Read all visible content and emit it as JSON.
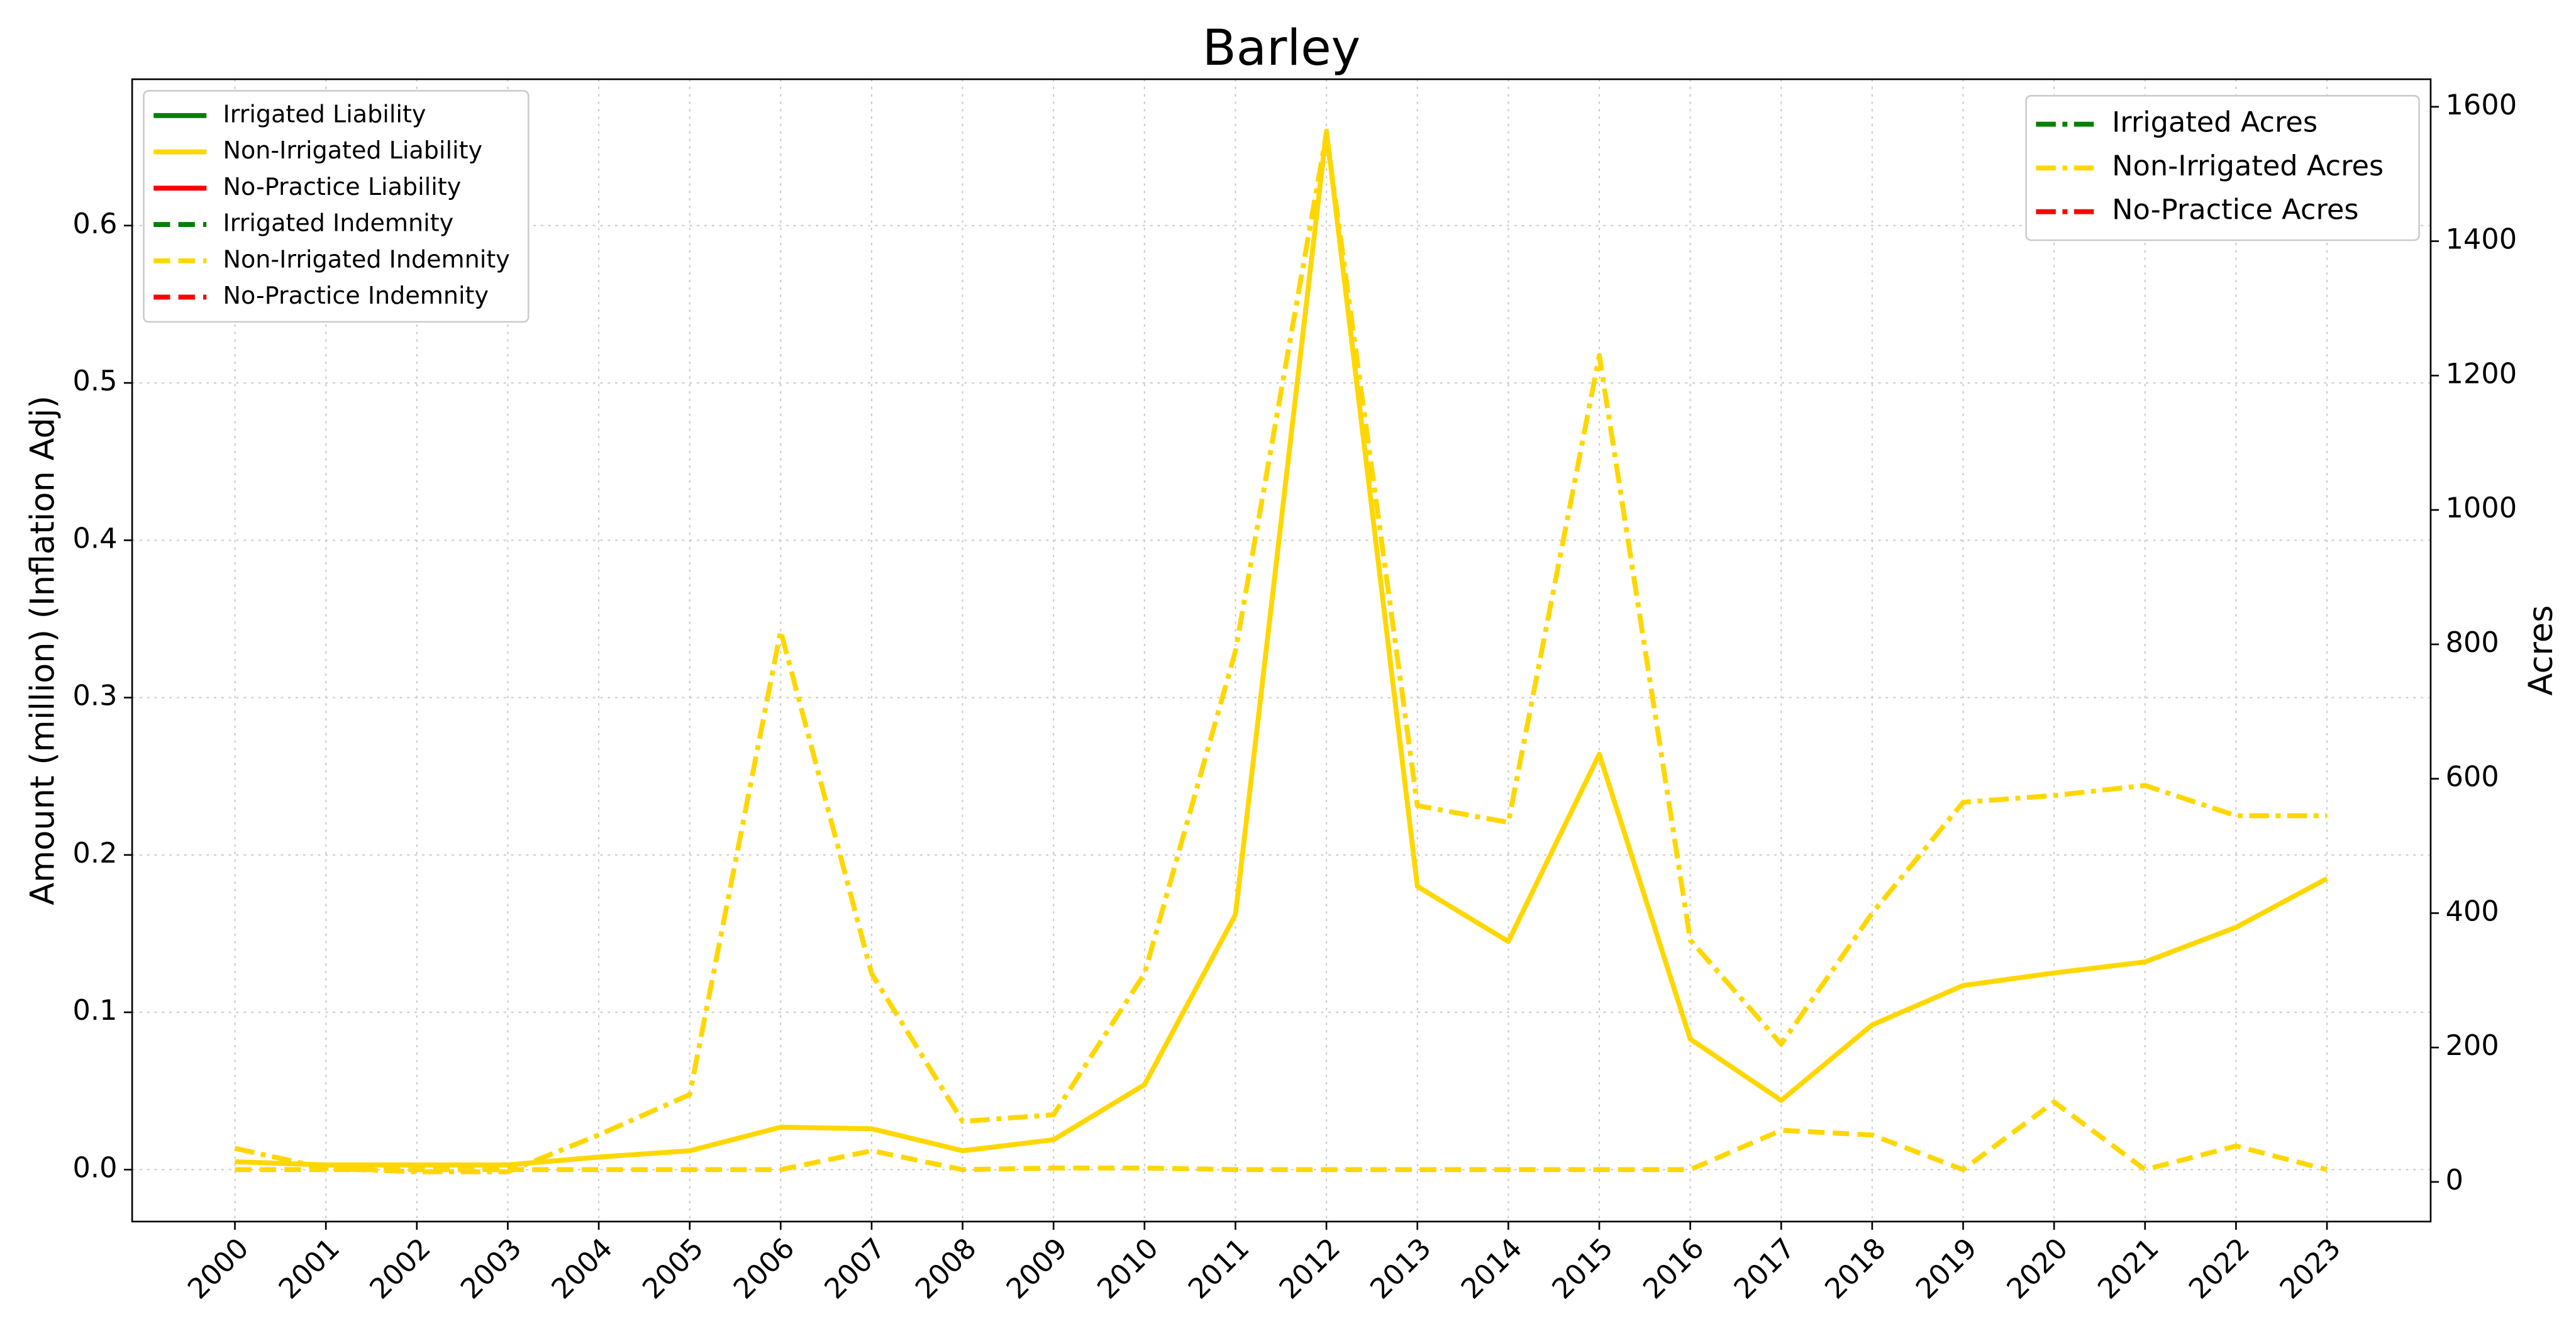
{
  "chart_data": {
    "type": "line",
    "title": "Barley",
    "ylabel": "Amount (million) (Inflation Adj)",
    "y2label": "Acres",
    "x": [
      2000,
      2001,
      2002,
      2003,
      2004,
      2005,
      2006,
      2007,
      2008,
      2009,
      2010,
      2011,
      2012,
      2013,
      2014,
      2015,
      2016,
      2017,
      2018,
      2019,
      2020,
      2021,
      2022,
      2023
    ],
    "xlim": [
      1998.87,
      2024.14
    ],
    "xticks": [
      2000,
      2001,
      2002,
      2003,
      2004,
      2005,
      2006,
      2007,
      2008,
      2009,
      2010,
      2011,
      2012,
      2013,
      2014,
      2015,
      2016,
      2017,
      2018,
      2019,
      2020,
      2021,
      2022,
      2023
    ],
    "ylim": [
      -0.033,
      0.693
    ],
    "yticks": [
      {
        "value": 0,
        "label": "0.0"
      },
      0.1,
      0.2,
      0.3,
      0.4,
      0.5,
      0.6
    ],
    "y2lim": [
      -59,
      1641
    ],
    "y2ticks": [
      0,
      200,
      400,
      600,
      800,
      1000,
      1200,
      1400,
      1600
    ],
    "grid": true,
    "legend": "upper left",
    "legend2": "upper right",
    "series": [
      {
        "name": "Irrigated Liability",
        "color": "#008000",
        "linestyle": "solid",
        "values": [
          null,
          null,
          null,
          null,
          null,
          null,
          null,
          null,
          null,
          null,
          null,
          null,
          null,
          null,
          null,
          null,
          null,
          null,
          null,
          null,
          null,
          null,
          null,
          null
        ]
      },
      {
        "name": "Non-Irrigated Liability",
        "color": "#ffd700",
        "linestyle": "solid",
        "values": [
          0.005,
          0.003,
          0.003,
          0.003,
          0.008,
          0.012,
          0.027,
          0.026,
          0.012,
          0.019,
          0.054,
          0.162,
          0.66,
          0.18,
          0.145,
          0.264,
          0.083,
          0.044,
          0.092,
          0.117,
          0.125,
          0.132,
          0.154,
          0.185
        ]
      },
      {
        "name": "No-Practice Liability",
        "color": "#ff0000",
        "linestyle": "solid",
        "values": [
          null,
          null,
          null,
          null,
          null,
          null,
          null,
          null,
          null,
          null,
          null,
          null,
          null,
          null,
          null,
          null,
          null,
          null,
          null,
          null,
          null,
          null,
          null,
          null
        ]
      },
      {
        "name": "Irrigated Indemnity",
        "color": "#008000",
        "linestyle": "dashed",
        "values": [
          null,
          null,
          null,
          null,
          null,
          null,
          null,
          null,
          null,
          null,
          null,
          null,
          null,
          null,
          null,
          null,
          null,
          null,
          null,
          null,
          null,
          null,
          null,
          null
        ]
      },
      {
        "name": "Non-Irrigated Indemnity",
        "color": "#ffd700",
        "linestyle": "dashed",
        "values": [
          0,
          0,
          0,
          0,
          0,
          0,
          0,
          0.012,
          0,
          0.001,
          0.001,
          0,
          0,
          0,
          0,
          0,
          0,
          0.025,
          0.022,
          0,
          0.043,
          0,
          0.015,
          0
        ]
      },
      {
        "name": "No-Practice Indemnity",
        "color": "#ff0000",
        "linestyle": "dashed",
        "values": [
          null,
          null,
          null,
          null,
          null,
          null,
          null,
          null,
          null,
          null,
          null,
          null,
          null,
          null,
          null,
          null,
          null,
          null,
          null,
          null,
          null,
          null,
          null,
          null
        ]
      },
      {
        "name": "Irrigated Acres",
        "color": "#008000",
        "linestyle": "dashdot",
        "axis": "y2",
        "values": [
          null,
          null,
          null,
          null,
          null,
          null,
          null,
          null,
          null,
          null,
          null,
          null,
          null,
          null,
          null,
          null,
          null,
          null,
          null,
          null,
          null,
          null,
          null,
          null
        ]
      },
      {
        "name": "Non-Irrigated Acres",
        "color": "#ffd700",
        "linestyle": "dashdot",
        "axis": "y2",
        "values": [
          50,
          20,
          15,
          15,
          70,
          130,
          820,
          310,
          90,
          100,
          310,
          790,
          1560,
          560,
          535,
          1230,
          360,
          205,
          400,
          565,
          575,
          590,
          545,
          545
        ]
      },
      {
        "name": "No-Practice Acres",
        "color": "#ff0000",
        "linestyle": "dashdot",
        "axis": "y2",
        "values": [
          null,
          null,
          null,
          null,
          null,
          null,
          null,
          null,
          null,
          null,
          null,
          null,
          null,
          null,
          null,
          null,
          null,
          null,
          null,
          null,
          null,
          null,
          null,
          null
        ]
      }
    ]
  }
}
